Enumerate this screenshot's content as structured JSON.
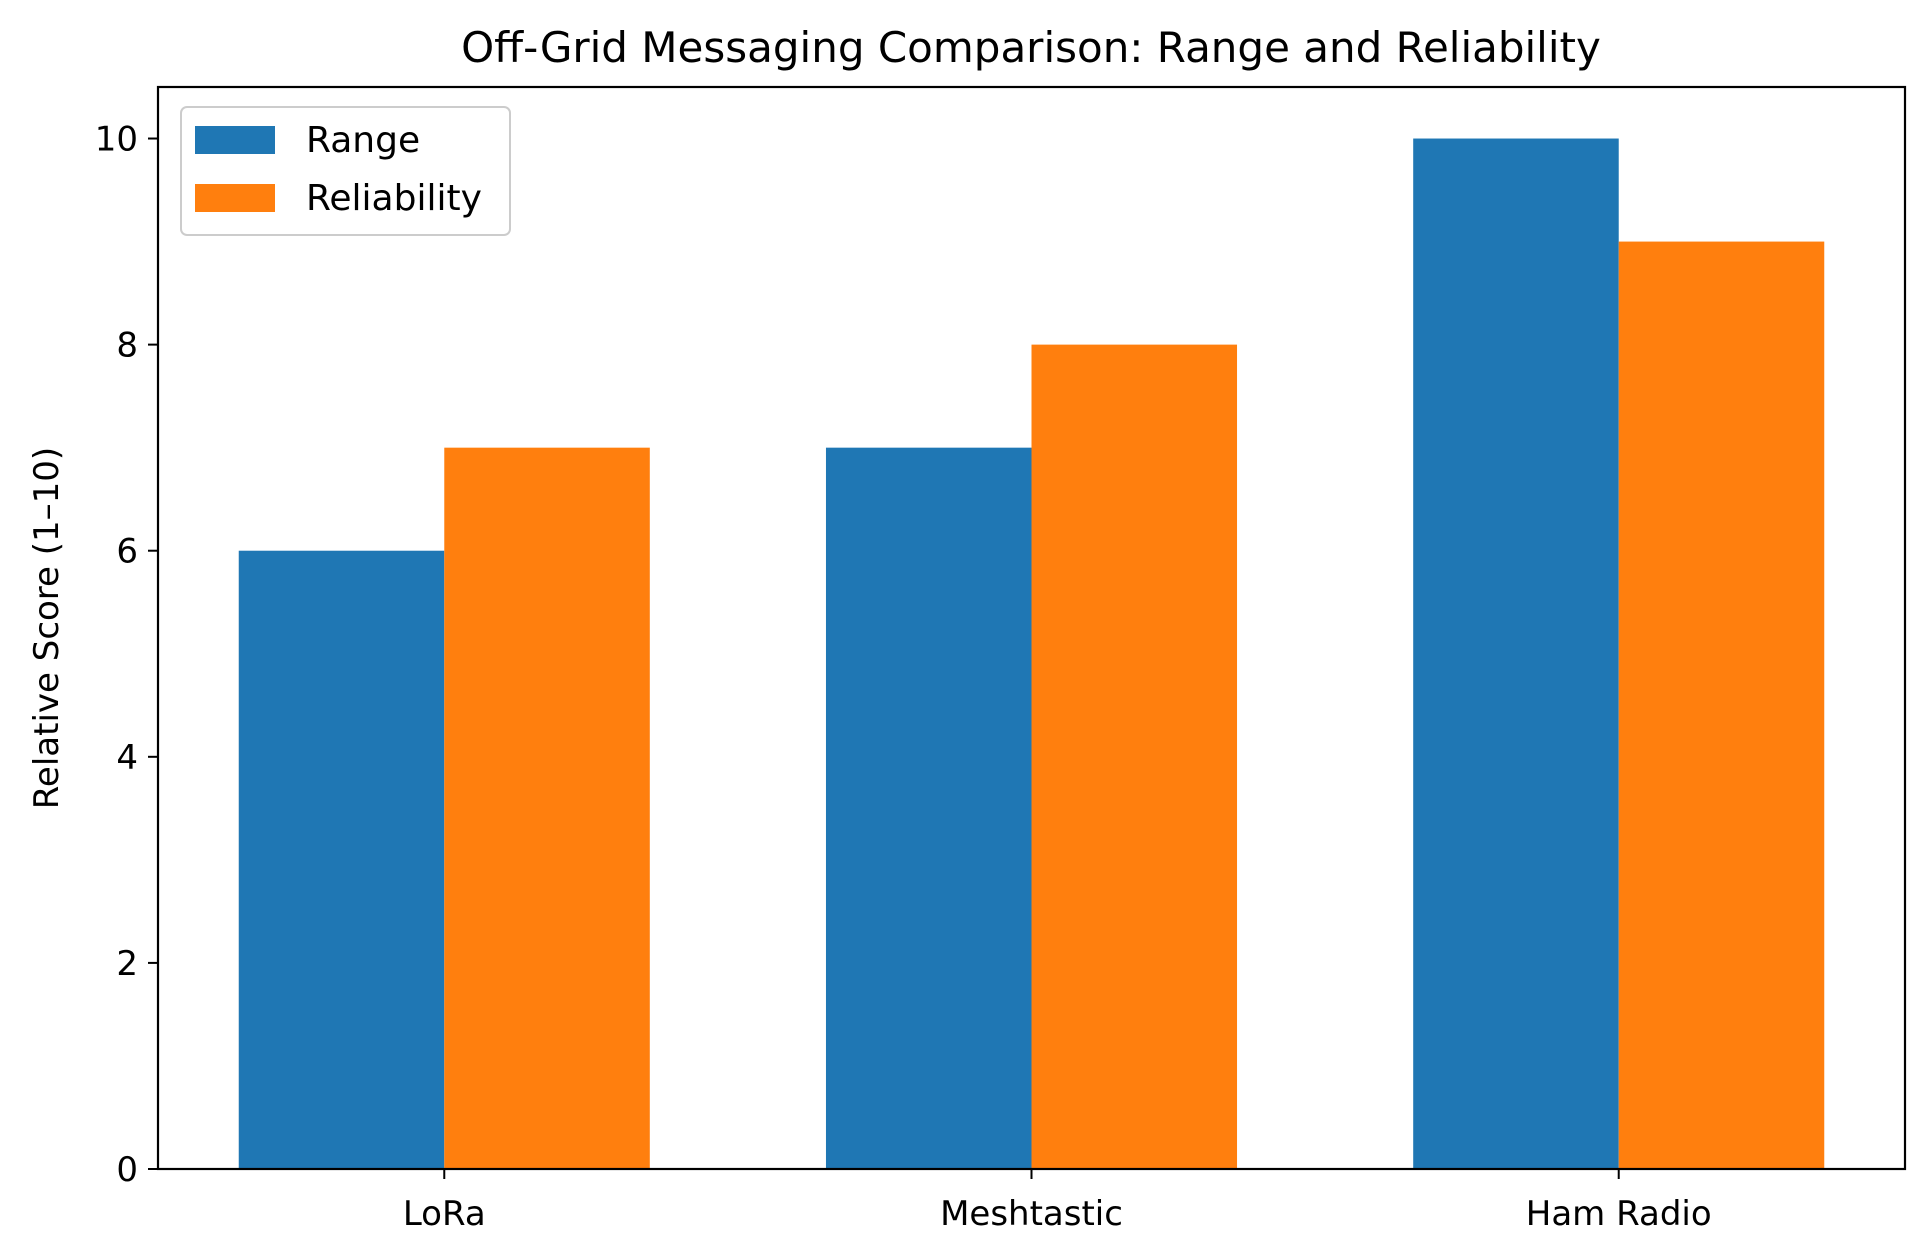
{
  "chart_data": {
    "type": "bar",
    "title": "Off-Grid Messaging Comparison: Range and Reliability",
    "xlabel": "",
    "ylabel": "Relative Score (1–10)",
    "categories": [
      "LoRa",
      "Meshtastic",
      "Ham Radio"
    ],
    "series": [
      {
        "name": "Range",
        "values": [
          6,
          7,
          10
        ],
        "color": "#1f77b4"
      },
      {
        "name": "Reliability",
        "values": [
          7,
          8,
          9
        ],
        "color": "#ff7f0e"
      }
    ],
    "ylim": [
      0,
      10.5
    ],
    "yticks": [
      0,
      2,
      4,
      6,
      8,
      10
    ],
    "grid": false,
    "legend_position": "top-left"
  }
}
